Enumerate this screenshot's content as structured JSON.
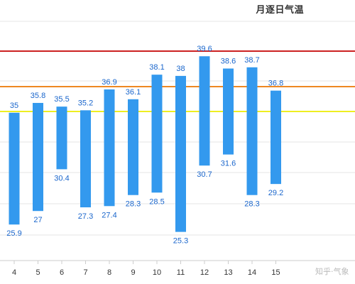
{
  "chart_data": {
    "type": "bar",
    "subtype": "floating-range",
    "title": "月逐日气温",
    "x": [
      "4",
      "5",
      "6",
      "7",
      "8",
      "9",
      "10",
      "11",
      "12",
      "13",
      "14",
      "15"
    ],
    "series": [
      {
        "color": "#3399ee",
        "high": [
          35,
          35.8,
          35.5,
          35.2,
          36.9,
          36.1,
          38.1,
          38,
          39.6,
          38.6,
          38.7,
          36.8
        ],
        "low": [
          25.9,
          27,
          30.4,
          27.3,
          27.4,
          28.3,
          28.5,
          25.3,
          30.7,
          31.6,
          28.3,
          29.2
        ]
      }
    ],
    "reference_lines": [
      {
        "color": "#cc2222"
      },
      {
        "color": "#ee8822"
      },
      {
        "color": "#eeee22"
      }
    ],
    "grid": true,
    "label_color": "#1a66cc"
  },
  "watermark": "知乎·气象"
}
